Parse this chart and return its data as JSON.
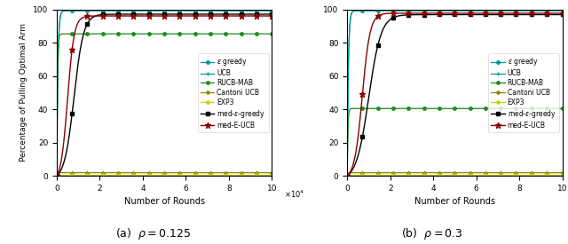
{
  "ylabel": "Percentage of Pulling Optimal Arm",
  "xlabel": "Number of Rounds",
  "legend_labels_a": [
    "$\\epsilon$ greedy",
    "UCB",
    "RUCB-MAB",
    "Cantoni UCB",
    "EXP3",
    "med-$\\epsilon$-greedy",
    "med-E-UCB"
  ],
  "legend_labels_b": [
    "$\\epsilon$ greedy",
    "UCB",
    "RUCB-MAB",
    "Cantoni UCB",
    "EXP3",
    "med-$\\epsilon$-greedy",
    "med-E-UCB"
  ],
  "panel_a": {
    "eps_greedy_plateau": 99.5,
    "ucb_plateau": 99.5,
    "rucb_plateau": 85.5,
    "cantoni_plateau": 1.8,
    "exp3_plateau": 0.5,
    "eps_color": "#009999",
    "ucb_color": "#009999",
    "rucb_color": "#228B22",
    "cantoni_color": "#8B8B00",
    "exp3_color": "#CCCC00",
    "meg_color": "#000000",
    "meucb_color": "#8B0000",
    "eps_rise": 500,
    "ucb_rise": 500,
    "rucb_rise": 300,
    "meg_midpoint": 8000,
    "meg_steepness": 0.00045,
    "meucb_midpoint": 5000,
    "meucb_steepness": 0.00065
  },
  "panel_b": {
    "eps_greedy_plateau": 99.5,
    "ucb_plateau": 99.5,
    "rucb_plateau": 40.5,
    "cantoni_plateau": 1.8,
    "exp3_plateau": 0.5,
    "eps_color": "#009999",
    "ucb_color": "#009999",
    "rucb_color": "#228B22",
    "cantoni_color": "#8B8B00",
    "exp3_color": "#CCCC00",
    "meg_color": "#000000",
    "meucb_color": "#8B0000",
    "eps_rise": 500,
    "ucb_rise": 500,
    "rucb_rise": 300,
    "meg_midpoint": 10000,
    "meg_steepness": 0.00035,
    "meucb_midpoint": 7000,
    "meucb_steepness": 0.00055
  },
  "subtitle_a": "(a)  $\\rho = 0.125$",
  "subtitle_b": "(b)  $\\rho = 0.3$"
}
